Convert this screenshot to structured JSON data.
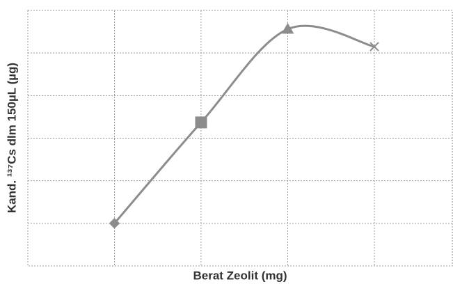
{
  "chart_data": {
    "type": "line",
    "x_label": "Berat Zeolit (mg)",
    "y_label": "Kand. ¹³⁷Cs dlm 150µL (µg)",
    "x": [
      1,
      2,
      3,
      4
    ],
    "series": [
      {
        "color": "#8c8c8c",
        "values": [
          1.0,
          3.37,
          5.56,
          5.15
        ]
      }
    ],
    "markers": [
      "diamond",
      "square",
      "triangle",
      "x"
    ],
    "xlim": [
      0,
      4.9
    ],
    "xticks": [
      1,
      2,
      3,
      4
    ],
    "ylim": [
      0,
      6
    ],
    "yticks": [
      1,
      2,
      3,
      4,
      5
    ],
    "grid": true,
    "smooth": true
  }
}
